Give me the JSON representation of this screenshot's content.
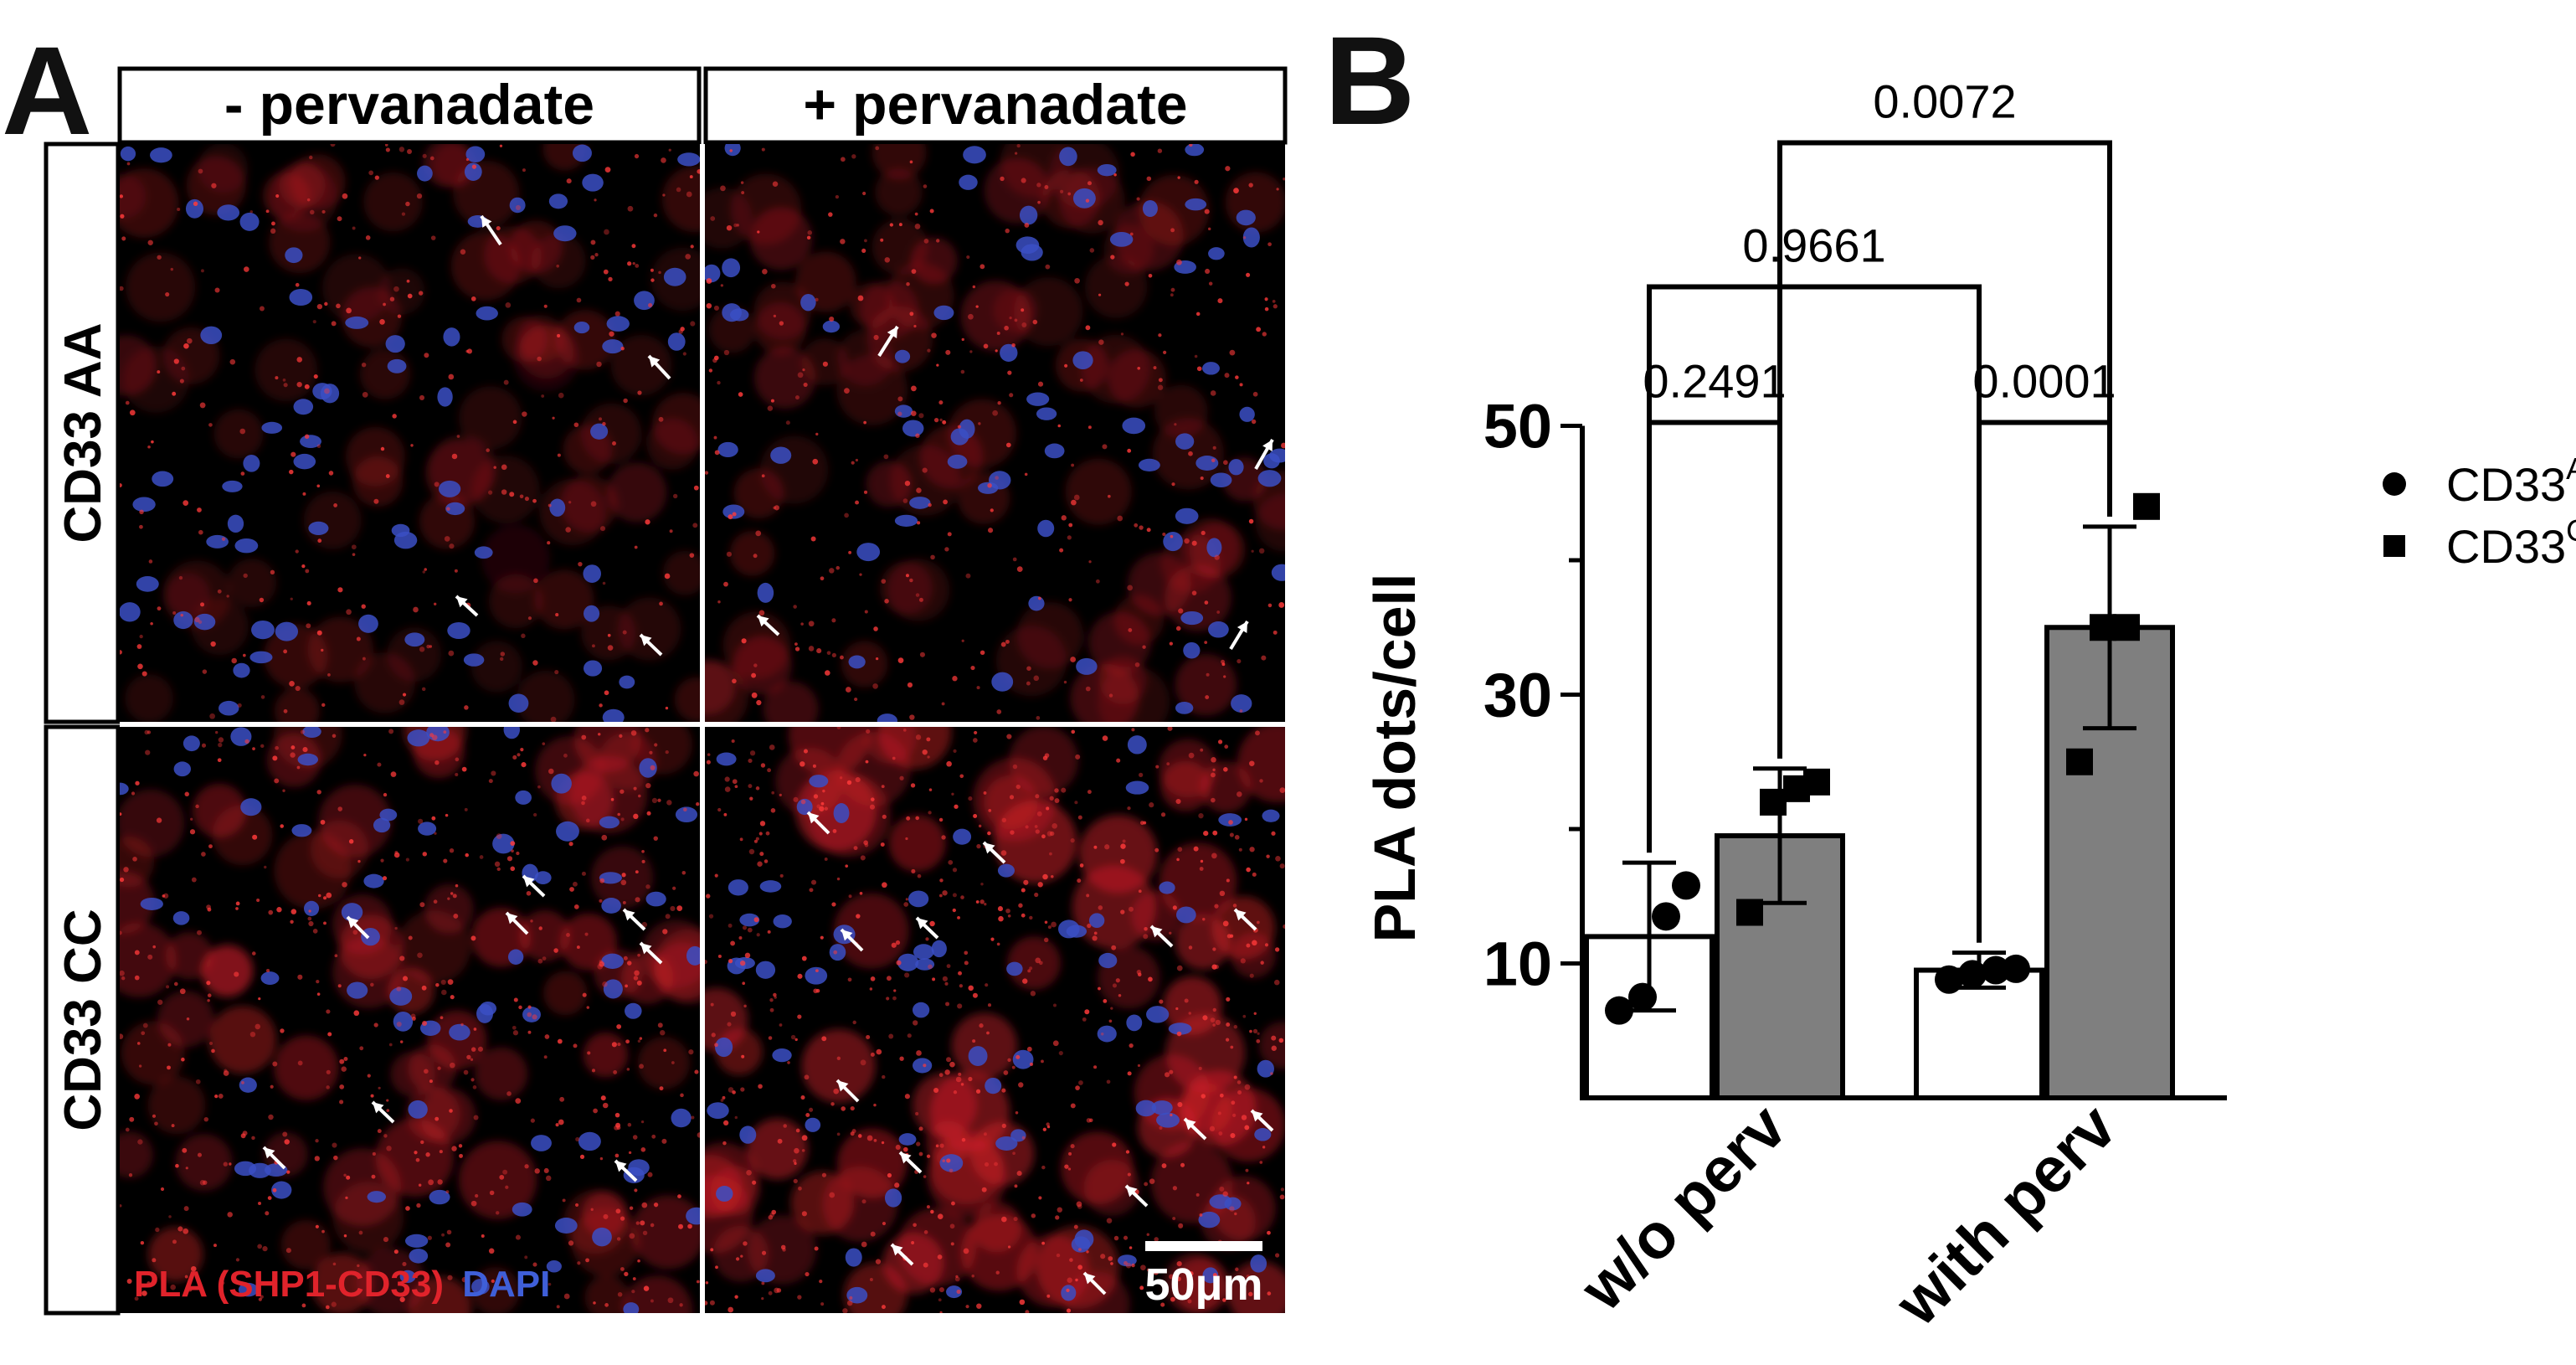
{
  "panel_a": {
    "letter": "A",
    "columns": [
      "- pervanadate",
      "+ pervanadate"
    ],
    "rows": [
      "CD33 AA",
      "CD33 CC"
    ],
    "stain_label_red": "PLA (SHP1-CD33)",
    "stain_label_blue": "DAPI",
    "scale_bar": "50μm",
    "colors": {
      "red": "#d8202a",
      "blue": "#3b4fc4",
      "background": "#000000"
    }
  },
  "panel_b": {
    "letter": "B"
  },
  "chart_data": {
    "type": "bar",
    "categories": [
      "w/o perv",
      "with perv"
    ],
    "ylabel": "PLA dots/cell",
    "ylim": [
      0,
      50
    ],
    "y_visible_from": 0,
    "yticks": [
      10,
      30,
      50
    ],
    "series": [
      {
        "name": "CD33",
        "name_sup": "AA",
        "marker": "circle",
        "fill": "#ffffff",
        "means": [
          12,
          9.5
        ],
        "sd": [
          5.5,
          1.3
        ],
        "points": [
          [
            6.5,
            7.5,
            13.5,
            15.8
          ],
          [
            8.8,
            9.2,
            9.5,
            9.6
          ]
        ]
      },
      {
        "name": "CD33",
        "name_sup": "CC",
        "marker": "square",
        "fill": "#7f7f7f",
        "means": [
          19.5,
          35
        ],
        "sd": [
          5,
          7.5
        ],
        "points": [
          [
            13.8,
            22,
            23,
            23.5
          ],
          [
            25,
            35,
            35,
            44
          ]
        ]
      }
    ],
    "comparisons": [
      {
        "label": "0.2491",
        "from": [
          0,
          0
        ],
        "to": [
          0,
          1
        ],
        "level": 1
      },
      {
        "label": "0.0001",
        "from": [
          1,
          0
        ],
        "to": [
          1,
          1
        ],
        "level": 1
      },
      {
        "label": "0.9661",
        "from": [
          0,
          0
        ],
        "to": [
          1,
          0
        ],
        "level": 2
      },
      {
        "label": "0.0072",
        "from": [
          0,
          1
        ],
        "to": [
          1,
          1
        ],
        "level": 3
      }
    ],
    "legend": "right"
  }
}
